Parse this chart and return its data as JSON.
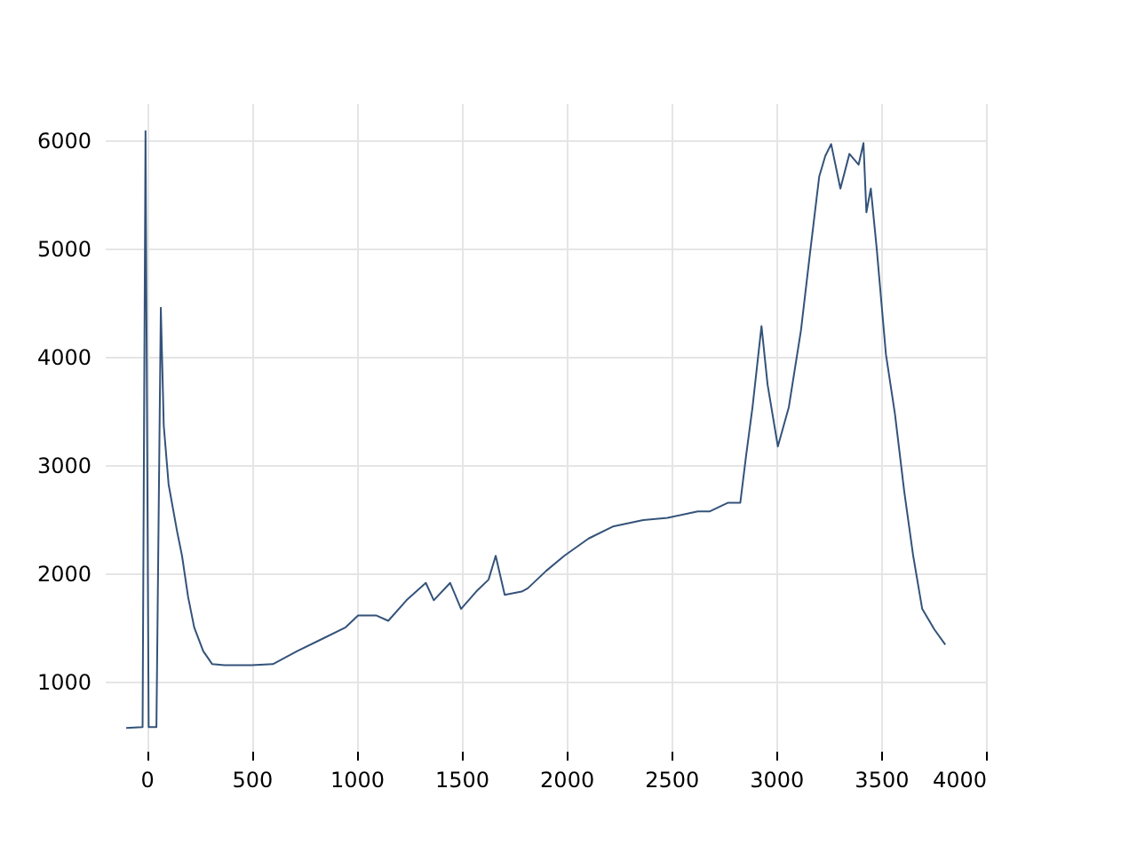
{
  "chart_data": {
    "type": "line",
    "xlim": [
      -200,
      4000
    ],
    "ylim": [
      360,
      6340
    ],
    "xticks": [
      0,
      500,
      1000,
      1500,
      2000,
      2500,
      3000,
      3500,
      4000
    ],
    "yticks": [
      1000,
      2000,
      3000,
      4000,
      5000,
      6000
    ],
    "grid": true,
    "marker": "none",
    "line_style": "solid",
    "series": [
      {
        "color": "#34537a",
        "x": [
          -98,
          -20,
          -6,
          9,
          46,
          67,
          81,
          104,
          145,
          168,
          197,
          226,
          269,
          312,
          370,
          500,
          601,
          717,
          833,
          948,
          1007,
          1093,
          1151,
          1238,
          1330,
          1368,
          1446,
          1498,
          1570,
          1629,
          1663,
          1706,
          1787,
          1816,
          1903,
          1990,
          2106,
          2221,
          2366,
          2482,
          2626,
          2684,
          2771,
          2829,
          2857,
          2887,
          2930,
          2959,
          3008,
          3060,
          3118,
          3161,
          3205,
          3234,
          3262,
          3306,
          3349,
          3393,
          3416,
          3430,
          3451,
          3479,
          3523,
          3566,
          3610,
          3653,
          3696,
          3754,
          3806
        ],
        "values": [
          570,
          580,
          6080,
          580,
          580,
          4450,
          3360,
          2820,
          2380,
          2160,
          1780,
          1500,
          1280,
          1160,
          1150,
          1150,
          1160,
          1280,
          1390,
          1500,
          1610,
          1610,
          1560,
          1750,
          1910,
          1750,
          1910,
          1670,
          1830,
          1940,
          2160,
          1800,
          1830,
          1860,
          2020,
          2160,
          2320,
          2430,
          2490,
          2510,
          2570,
          2570,
          2650,
          2650,
          3090,
          3530,
          4280,
          3740,
          3170,
          3530,
          4240,
          4950,
          5660,
          5850,
          5960,
          5550,
          5870,
          5770,
          5970,
          5330,
          5550,
          5000,
          4020,
          3470,
          2760,
          2160,
          1670,
          1480,
          1340
        ]
      }
    ]
  }
}
